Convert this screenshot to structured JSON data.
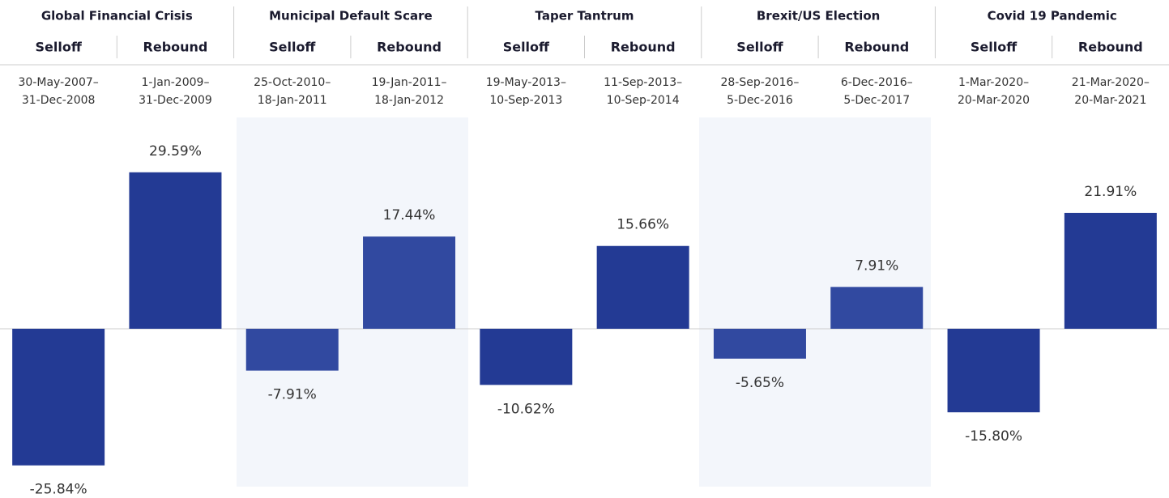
{
  "chart_data": {
    "type": "bar",
    "groups": [
      "Global Financial Crisis",
      "Municipal Default Scare",
      "Taper Tantrum",
      "Brexit/US Election",
      "Covid 19 Pandemic"
    ],
    "categories": [
      "Selloff",
      "Rebound",
      "Selloff",
      "Rebound",
      "Selloff",
      "Rebound",
      "Selloff",
      "Rebound",
      "Selloff",
      "Rebound"
    ],
    "date_ranges": [
      [
        "30-May-2007–",
        "31-Dec-2008"
      ],
      [
        "1-Jan-2009–",
        "31-Dec-2009"
      ],
      [
        "25-Oct-2010–",
        "18-Jan-2011"
      ],
      [
        "19-Jan-2011–",
        "18-Jan-2012"
      ],
      [
        "19-May-2013–",
        "10-Sep-2013"
      ],
      [
        "11-Sep-2013–",
        "10-Sep-2014"
      ],
      [
        "28-Sep-2016–",
        "5-Dec-2016"
      ],
      [
        "6-Dec-2016–",
        "5-Dec-2017"
      ],
      [
        "1-Mar-2020–",
        "20-Mar-2020"
      ],
      [
        "21-Mar-2020–",
        "20-Mar-2021"
      ]
    ],
    "values": [
      -25.84,
      29.59,
      -7.91,
      17.44,
      -10.62,
      15.66,
      -5.65,
      7.91,
      -15.8,
      21.91
    ],
    "value_labels": [
      "-25.84%",
      "29.59%",
      "-7.91%",
      "17.44%",
      "-10.62%",
      "15.66%",
      "-5.65%",
      "7.91%",
      "-15.80%",
      "21.91%"
    ],
    "colors": [
      "#233a94",
      "#233a94",
      "#3149a0",
      "#3149a0",
      "#233a94",
      "#233a94",
      "#3149a0",
      "#3149a0",
      "#233a94",
      "#233a94"
    ]
  }
}
